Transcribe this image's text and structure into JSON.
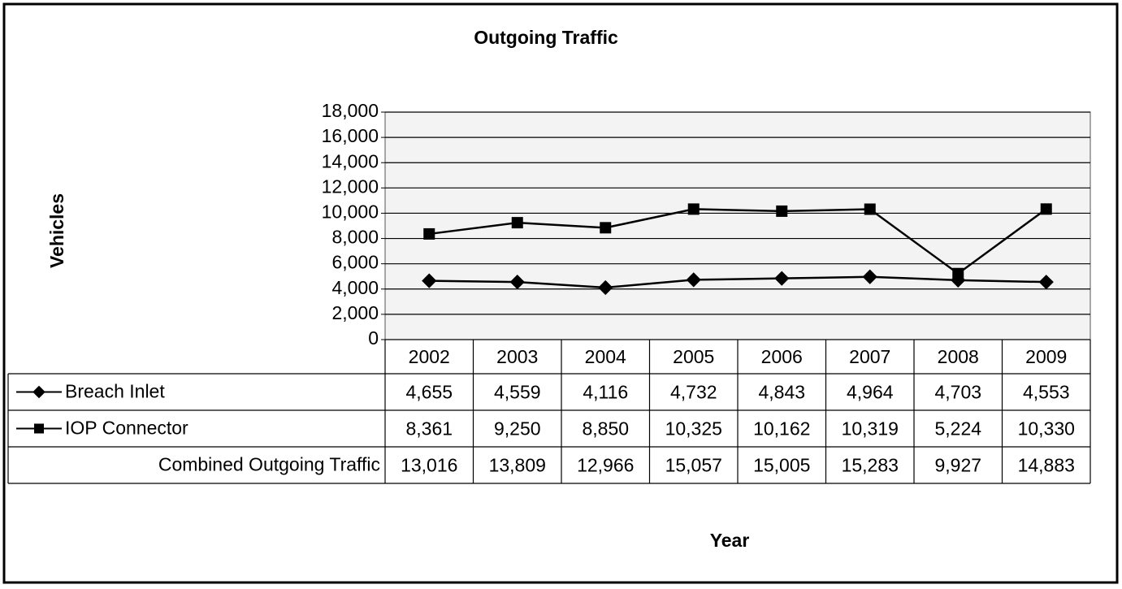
{
  "chart_data": {
    "type": "line",
    "title": "Outgoing Traffic",
    "y_label": "Vehicles",
    "x_label": "Year",
    "categories": [
      "2002",
      "2003",
      "2004",
      "2005",
      "2006",
      "2007",
      "2008",
      "2009"
    ],
    "series": [
      {
        "name": "Breach Inlet",
        "color": "#000000",
        "marker": "diamond",
        "values": [
          4655,
          4559,
          4116,
          4732,
          4843,
          4964,
          4703,
          4553
        ],
        "value_labels": [
          "4,655",
          "4,559",
          "4,116",
          "4,732",
          "4,843",
          "4,964",
          "4,703",
          "4,553"
        ]
      },
      {
        "name": "IOP Connector",
        "color": "#000000",
        "marker": "square",
        "values": [
          8361,
          9250,
          8850,
          10325,
          10162,
          10319,
          5224,
          10330
        ],
        "value_labels": [
          "8,361",
          "9,250",
          "8,850",
          "10,325",
          "10,162",
          "10,319",
          "5,224",
          "10,330"
        ]
      }
    ],
    "totals": {
      "name": "Combined Outgoing Traffic",
      "values": [
        13016,
        13809,
        12966,
        15057,
        15005,
        15283,
        9927,
        14883
      ],
      "value_labels": [
        "13,016",
        "13,809",
        "12,966",
        "15,057",
        "15,005",
        "15,283",
        "9,927",
        "14,883"
      ]
    },
    "ylim": [
      0,
      18000
    ],
    "yticks": [
      0,
      {
        "value": 2000,
        "label": "2,000"
      },
      {
        "value": 4000,
        "label": "4,000"
      },
      {
        "value": 6000,
        "label": "6,000"
      },
      {
        "value": 8000,
        "label": "8,000"
      },
      {
        "value": 10000,
        "label": "10,000"
      },
      {
        "value": 12000,
        "label": "12,000"
      },
      {
        "value": 14000,
        "label": "14,000"
      },
      {
        "value": 16000,
        "label": "16,000"
      },
      {
        "value": 18000,
        "label": "18,000"
      }
    ],
    "grid": true
  }
}
